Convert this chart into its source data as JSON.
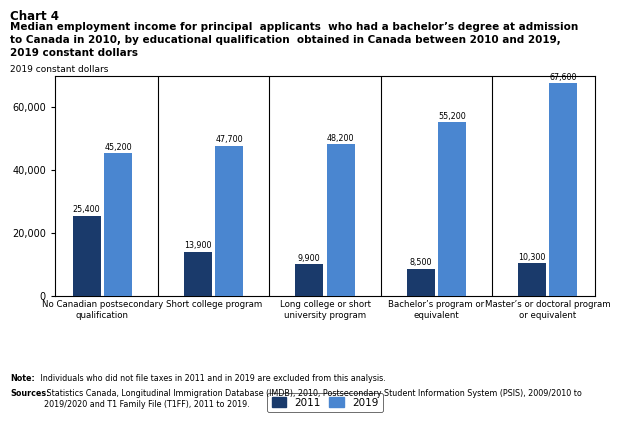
{
  "chart_label": "Chart 4",
  "title_line1": "Median employment income for principal  applicants  who had a bachelor’s degree at admission",
  "title_line2": "to Canada in 2010, by educational qualification  obtained in Canada between 2010 and 2019,",
  "title_line3": "2019 constant dollars",
  "y_axis_label": "2019 constant dollars",
  "categories": [
    "No Canadian postsecondary\nqualification",
    "Short college program",
    "Long college or short\nuniversity program",
    "Bachelor’s program or\nequivalent",
    "Master’s or doctoral program\nor equivalent"
  ],
  "values_2011": [
    25400,
    13900,
    9900,
    8500,
    10300
  ],
  "values_2019": [
    45200,
    47700,
    48200,
    55200,
    67600
  ],
  "color_2011": "#1a3a6b",
  "color_2019": "#4a86d0",
  "legend_labels": [
    "2011",
    "2019"
  ],
  "ylim": [
    0,
    70000
  ],
  "yticks": [
    0,
    20000,
    40000,
    60000
  ],
  "note_bold": "Note:",
  "note_text": " Individuals who did not file taxes in 2011 and in 2019 are excluded from this analysis.",
  "sources_bold": "Sources:",
  "sources_text": " Statistics Canada, Longitudinal Immigration Database (IMDB), 2010, Postsecondary Student Information System (PSIS), 2009/2010 to\n2019/2020 and T1 Family File (T1FF), 2011 to 2019."
}
